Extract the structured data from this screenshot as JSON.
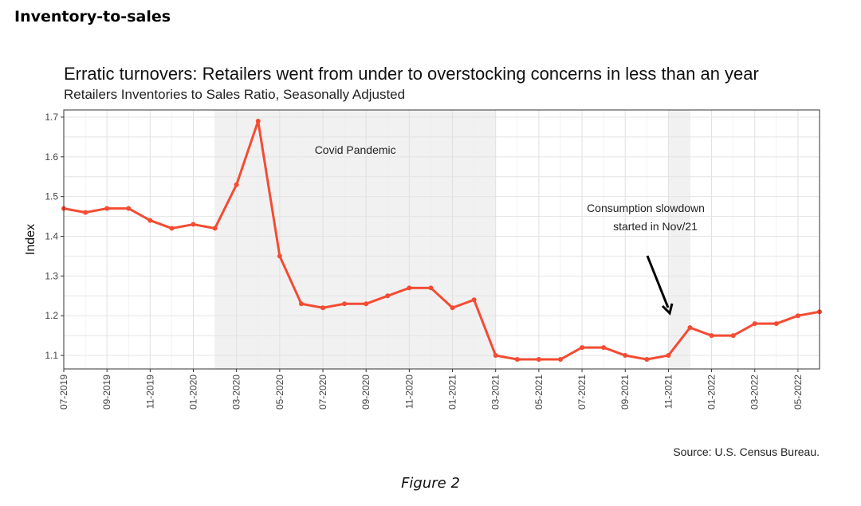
{
  "heading": "Inventory-to-sales",
  "caption": "Figure 2",
  "chart_data": {
    "type": "line",
    "title": "Erratic turnovers: Retailers went from under to overstocking concerns in less than an year",
    "subtitle": "Retailers Inventories to Sales Ratio, Seasonally Adjusted",
    "ylabel": "Index",
    "xlabel": "",
    "source": "Source: U.S. Census Bureau.",
    "x": [
      "07-2019",
      "08-2019",
      "09-2019",
      "10-2019",
      "11-2019",
      "12-2019",
      "01-2020",
      "02-2020",
      "03-2020",
      "04-2020",
      "05-2020",
      "06-2020",
      "07-2020",
      "08-2020",
      "09-2020",
      "10-2020",
      "11-2020",
      "12-2020",
      "01-2021",
      "02-2021",
      "03-2021",
      "04-2021",
      "05-2021",
      "06-2021",
      "07-2021",
      "08-2021",
      "09-2021",
      "10-2021",
      "11-2021",
      "12-2021",
      "01-2022",
      "02-2022",
      "03-2022",
      "04-2022",
      "05-2022",
      "06-2022"
    ],
    "values": [
      1.47,
      1.46,
      1.47,
      1.47,
      1.44,
      1.42,
      1.43,
      1.42,
      1.53,
      1.69,
      1.35,
      1.23,
      1.22,
      1.23,
      1.23,
      1.25,
      1.27,
      1.27,
      1.22,
      1.24,
      1.1,
      1.09,
      1.09,
      1.09,
      1.12,
      1.12,
      1.1,
      1.09,
      1.1,
      1.17,
      1.15,
      1.15,
      1.18,
      1.18,
      1.2,
      1.21
    ],
    "x_tick_labels": [
      "07-2019",
      "09-2019",
      "11-2019",
      "01-2020",
      "03-2020",
      "05-2020",
      "07-2020",
      "09-2020",
      "11-2020",
      "01-2021",
      "03-2021",
      "05-2021",
      "07-2021",
      "09-2021",
      "11-2021",
      "01-2022",
      "03-2022",
      "05-2022"
    ],
    "y_ticks": [
      "1.1",
      "1.2",
      "1.3",
      "1.4",
      "1.5",
      "1.6",
      "1.7"
    ],
    "ylim": [
      1.066,
      1.718
    ],
    "grid": true,
    "line_color": "#f44b33",
    "shaded_periods": [
      {
        "start": "02-2020",
        "end": "03-2021",
        "label": "Covid Pandemic"
      },
      {
        "start": "11-2021",
        "end": "12-2021",
        "label": ""
      }
    ],
    "annotation": {
      "line1": "Consumption slowdown",
      "line2": "started in Nov/21",
      "points_to": "11-2021"
    }
  }
}
